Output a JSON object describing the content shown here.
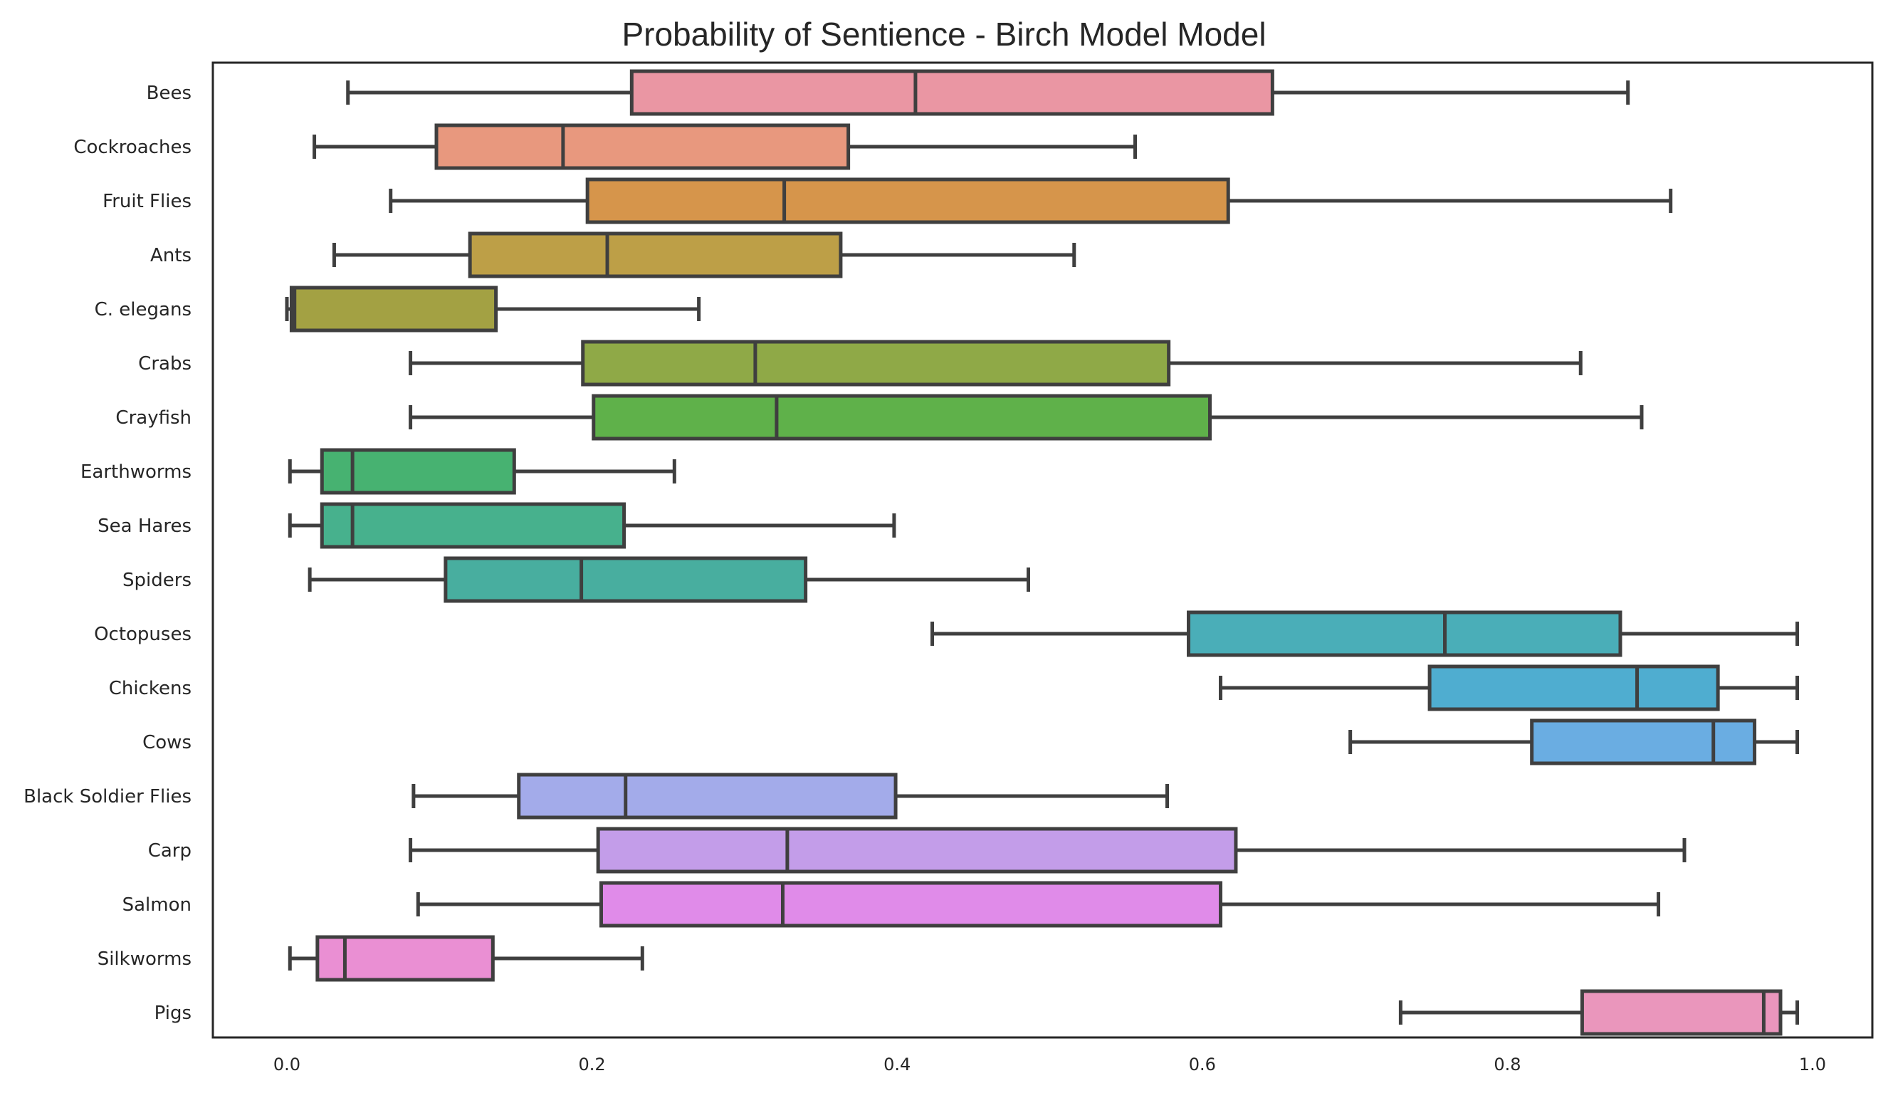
{
  "chart_data": {
    "type": "box",
    "orientation": "horizontal",
    "title": "Probability of Sentience - Birch Model Model",
    "xlabel": "",
    "ylabel": "",
    "xlim": [
      -0.05,
      1.04
    ],
    "xticks": [
      0.0,
      0.2,
      0.4,
      0.6,
      0.8,
      1.0
    ],
    "xtick_labels": [
      "0.0",
      "0.2",
      "0.4",
      "0.6",
      "0.8",
      "1.0"
    ],
    "grid": false,
    "legend": "none",
    "series": [
      {
        "category": "Bees",
        "color": "#ea96a3",
        "whisker_low": 0.04,
        "q1": 0.226,
        "median": 0.412,
        "q3": 0.646,
        "whisker_high": 0.879
      },
      {
        "category": "Cockroaches",
        "color": "#e8987e",
        "whisker_low": 0.018,
        "q1": 0.098,
        "median": 0.181,
        "q3": 0.368,
        "whisker_high": 0.556
      },
      {
        "category": "Fruit Flies",
        "color": "#d6954b",
        "whisker_low": 0.068,
        "q1": 0.197,
        "median": 0.326,
        "q3": 0.617,
        "whisker_high": 0.907
      },
      {
        "category": "Ants",
        "color": "#bd9f47",
        "whisker_low": 0.031,
        "q1": 0.12,
        "median": 0.21,
        "q3": 0.363,
        "whisker_high": 0.516
      },
      {
        "category": "C. elegans",
        "color": "#a3a143",
        "whisker_low": 0.0,
        "q1": 0.003,
        "median": 0.005,
        "q3": 0.137,
        "whisker_high": 0.27
      },
      {
        "category": "Crabs",
        "color": "#8fa947",
        "whisker_low": 0.081,
        "q1": 0.194,
        "median": 0.307,
        "q3": 0.578,
        "whisker_high": 0.848
      },
      {
        "category": "Crayfish",
        "color": "#5fb14a",
        "whisker_low": 0.081,
        "q1": 0.201,
        "median": 0.321,
        "q3": 0.605,
        "whisker_high": 0.888
      },
      {
        "category": "Earthworms",
        "color": "#47b271",
        "whisker_low": 0.002,
        "q1": 0.023,
        "median": 0.043,
        "q3": 0.149,
        "whisker_high": 0.254
      },
      {
        "category": "Sea Hares",
        "color": "#47b18d",
        "whisker_low": 0.002,
        "q1": 0.023,
        "median": 0.043,
        "q3": 0.221,
        "whisker_high": 0.398
      },
      {
        "category": "Spiders",
        "color": "#48ae9f",
        "whisker_low": 0.015,
        "q1": 0.104,
        "median": 0.193,
        "q3": 0.34,
        "whisker_high": 0.486
      },
      {
        "category": "Octopuses",
        "color": "#4aaeb8",
        "whisker_low": 0.423,
        "q1": 0.591,
        "median": 0.759,
        "q3": 0.874,
        "whisker_high": 0.99
      },
      {
        "category": "Chickens",
        "color": "#4fadd0",
        "whisker_low": 0.612,
        "q1": 0.749,
        "median": 0.885,
        "q3": 0.938,
        "whisker_high": 0.99
      },
      {
        "category": "Cows",
        "color": "#6aade2",
        "whisker_low": 0.697,
        "q1": 0.816,
        "median": 0.935,
        "q3": 0.962,
        "whisker_high": 0.99
      },
      {
        "category": "Black Soldier Flies",
        "color": "#a3abea",
        "whisker_low": 0.083,
        "q1": 0.152,
        "median": 0.222,
        "q3": 0.399,
        "whisker_high": 0.577
      },
      {
        "category": "Carp",
        "color": "#c39de9",
        "whisker_low": 0.081,
        "q1": 0.204,
        "median": 0.328,
        "q3": 0.622,
        "whisker_high": 0.916
      },
      {
        "category": "Salmon",
        "color": "#e08be9",
        "whisker_low": 0.086,
        "q1": 0.206,
        "median": 0.325,
        "q3": 0.612,
        "whisker_high": 0.899
      },
      {
        "category": "Silkworms",
        "color": "#ea8fd3",
        "whisker_low": 0.002,
        "q1": 0.02,
        "median": 0.038,
        "q3": 0.135,
        "whisker_high": 0.233
      },
      {
        "category": "Pigs",
        "color": "#ea96bc",
        "whisker_low": 0.73,
        "q1": 0.849,
        "median": 0.968,
        "q3": 0.979,
        "whisker_high": 0.99
      }
    ]
  }
}
